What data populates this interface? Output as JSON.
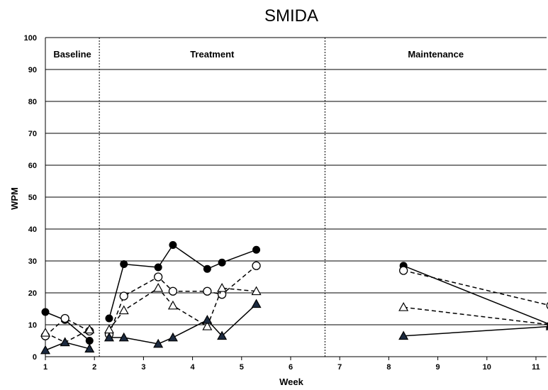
{
  "chart_data": {
    "type": "line",
    "title": "SMIDA",
    "xlabel": "Week",
    "ylabel": "WPM",
    "xlim": [
      1,
      11
    ],
    "ylim": [
      0,
      100
    ],
    "x_ticks": [
      "1",
      "2",
      "3",
      "4",
      "5",
      "6",
      "7",
      "8",
      "9",
      "10",
      "11"
    ],
    "y_ticks": [
      "0",
      "10",
      "20",
      "30",
      "40",
      "50",
      "60",
      "70",
      "80",
      "90",
      "100"
    ],
    "grid": "horizontal",
    "phases": [
      {
        "label": "Baseline"
      },
      {
        "label": "Treatment"
      },
      {
        "label": "Maintenance"
      }
    ],
    "phase_boundaries": [
      2.1,
      6.7
    ],
    "series": [
      {
        "marker": "filled-circle",
        "line": "solid",
        "color": "#000000",
        "segments": [
          [
            [
              1,
              14
            ],
            [
              1.4,
              11.5
            ],
            [
              1.9,
              5
            ]
          ],
          [
            [
              2.3,
              12
            ],
            [
              2.6,
              29
            ],
            [
              3.3,
              28
            ],
            [
              3.6,
              35
            ],
            [
              4.3,
              27.5
            ],
            [
              4.6,
              29.5
            ],
            [
              5.3,
              33.5
            ]
          ],
          [
            [
              8.3,
              28.5
            ],
            [
              11.3,
              10
            ]
          ]
        ]
      },
      {
        "marker": "open-circle",
        "line": "dashed",
        "color": "#000000",
        "segments": [
          [
            [
              1,
              6.5
            ],
            [
              1.4,
              12
            ],
            [
              1.9,
              8
            ]
          ],
          [
            [
              2.3,
              7
            ],
            [
              2.6,
              19
            ],
            [
              3.3,
              25
            ],
            [
              3.6,
              20.5
            ],
            [
              4.3,
              20.5
            ],
            [
              4.6,
              19.5
            ],
            [
              5.3,
              28.5
            ]
          ],
          [
            [
              8.3,
              27
            ],
            [
              11.3,
              16
            ]
          ]
        ]
      },
      {
        "marker": "open-triangle",
        "line": "dashed",
        "color": "#000000",
        "segments": [
          [
            [
              1,
              7.5
            ],
            [
              1.4,
              4.5
            ],
            [
              1.9,
              8.5
            ]
          ],
          [
            [
              2.3,
              8.5
            ],
            [
              2.6,
              14.5
            ],
            [
              3.3,
              21.5
            ],
            [
              3.6,
              16
            ],
            [
              4.3,
              9.5
            ],
            [
              4.6,
              21.5
            ],
            [
              5.3,
              20.5
            ]
          ],
          [
            [
              8.3,
              15.5
            ],
            [
              11.3,
              10
            ]
          ]
        ]
      },
      {
        "marker": "filled-triangle",
        "line": "solid",
        "color": "#1c2a3f",
        "segments": [
          [
            [
              1,
              2
            ],
            [
              1.4,
              4.5
            ],
            [
              1.9,
              2.5
            ]
          ],
          [
            [
              2.3,
              6
            ],
            [
              2.6,
              6
            ],
            [
              3.3,
              4
            ],
            [
              3.6,
              6
            ],
            [
              4.3,
              11.5
            ],
            [
              4.6,
              6.5
            ],
            [
              5.3,
              16.5
            ]
          ],
          [
            [
              8.3,
              6.5
            ],
            [
              11.3,
              9.5
            ]
          ]
        ]
      }
    ]
  }
}
